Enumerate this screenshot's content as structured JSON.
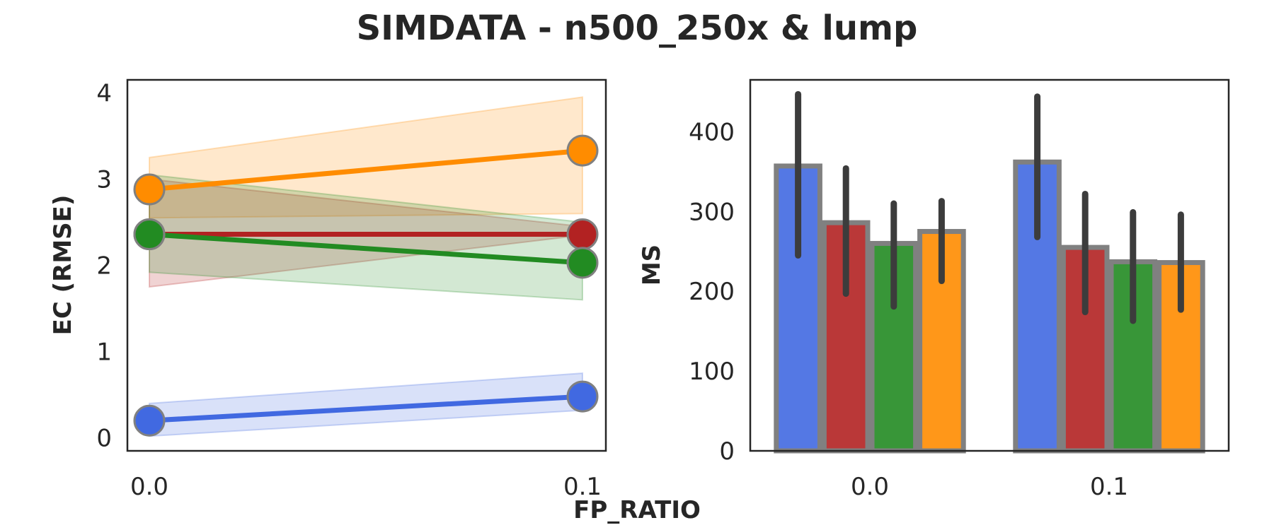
{
  "figure": {
    "title": "SIMDATA - n500_250x & lump",
    "xlabel": "FP_RATIO"
  },
  "chart_data": [
    {
      "type": "line",
      "ylabel": "EC (RMSE)",
      "x": [
        0.0,
        0.1
      ],
      "x_tick_labels": [
        "0.0",
        "0.1"
      ],
      "y_ticks": [
        0,
        1,
        2,
        3,
        4
      ],
      "ylim": [
        -0.15,
        4.15
      ],
      "grid": false,
      "series": [
        {
          "color": "#ff8c00",
          "values": [
            2.88,
            3.33
          ],
          "lower": [
            2.55,
            2.6
          ],
          "upper": [
            3.25,
            3.95
          ]
        },
        {
          "color": "#b22222",
          "values": [
            2.36,
            2.36
          ],
          "lower": [
            1.75,
            2.35
          ],
          "upper": [
            3.0,
            2.45
          ]
        },
        {
          "color": "#228b22",
          "values": [
            2.36,
            2.03
          ],
          "lower": [
            1.92,
            1.6
          ],
          "upper": [
            3.05,
            2.5
          ]
        },
        {
          "color": "#4169e1",
          "values": [
            0.2,
            0.48
          ],
          "lower": [
            0.02,
            0.32
          ],
          "upper": [
            0.4,
            0.75
          ]
        }
      ]
    },
    {
      "type": "bar",
      "ylabel": "MS",
      "categories": [
        "0.0",
        "0.1"
      ],
      "y_ticks": [
        0,
        100,
        200,
        300,
        400
      ],
      "ylim": [
        0,
        465
      ],
      "grid": false,
      "series": [
        {
          "color": "#4169e1",
          "values": [
            357,
            362
          ],
          "err_low": [
            245,
            268
          ],
          "err_high": [
            447,
            444
          ]
        },
        {
          "color": "#b22222",
          "values": [
            286,
            255
          ],
          "err_low": [
            197,
            174
          ],
          "err_high": [
            354,
            322
          ]
        },
        {
          "color": "#228b22",
          "values": [
            260,
            237
          ],
          "err_low": [
            181,
            163
          ],
          "err_high": [
            310,
            299
          ]
        },
        {
          "color": "#ff8c00",
          "values": [
            275,
            236
          ],
          "err_low": [
            213,
            177
          ],
          "err_high": [
            313,
            296
          ]
        }
      ]
    }
  ]
}
